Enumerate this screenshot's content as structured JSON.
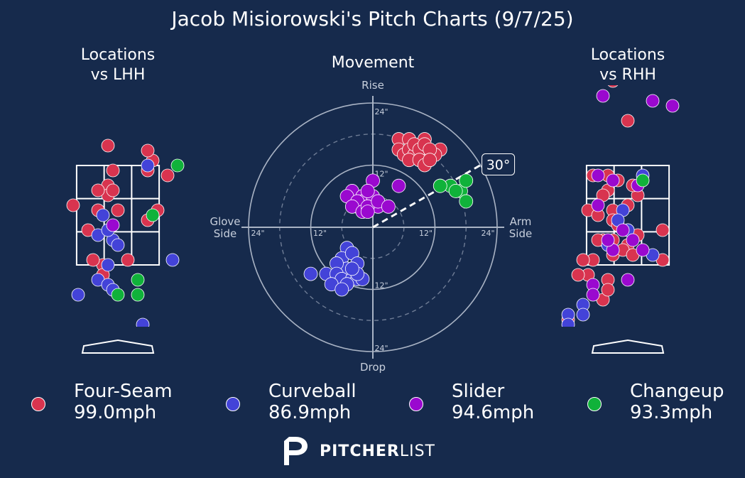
{
  "title": "Jacob Misiorowski's Pitch Charts (9/7/25)",
  "colors": {
    "background": "#162a4c",
    "four_seam": "#d8344f",
    "curveball": "#4343d8",
    "slider": "#9a09cf",
    "changeup": "#10b23a"
  },
  "panels": {
    "lhh_title": "Locations\nvs LHH",
    "movement_title": "Movement",
    "rhh_title": "Locations\nvs RHH"
  },
  "movement_labels": {
    "rise": "Rise",
    "drop": "Drop",
    "glove": "Glove\nSide",
    "arm": "Arm\nSide",
    "ticks": [
      "24\"",
      "12\"",
      "12\"",
      "24\""
    ],
    "arm_angle": "30°"
  },
  "legend": [
    {
      "name": "Four-Seam",
      "speed": "99.0mph",
      "key": "four_seam"
    },
    {
      "name": "Curveball",
      "speed": "86.9mph",
      "key": "curveball"
    },
    {
      "name": "Slider",
      "speed": "94.6mph",
      "key": "slider"
    },
    {
      "name": "Changeup",
      "speed": "93.3mph",
      "key": "changeup"
    }
  ],
  "brand": {
    "bold": "PITCHER",
    "light": "LIST",
    "icon": "pitcherlist-logo-icon"
  },
  "chart_data": [
    {
      "type": "scatter",
      "title": "Locations vs LHH",
      "xlabel": "",
      "ylabel": "",
      "series": [
        {
          "name": "Four-Seam",
          "points": [
            [
              -0.2,
              3.9
            ],
            [
              -0.1,
              3.4
            ],
            [
              -0.2,
              3.1
            ],
            [
              -0.2,
              2.9
            ],
            [
              -0.4,
              3.0
            ],
            [
              -0.1,
              3.0
            ],
            [
              0.0,
              2.6
            ],
            [
              -0.6,
              2.2
            ],
            [
              -0.4,
              2.6
            ],
            [
              -0.3,
              1.5
            ],
            [
              0.2,
              1.6
            ],
            [
              0.6,
              2.4
            ],
            [
              0.7,
              3.6
            ],
            [
              1.0,
              3.3
            ],
            [
              0.8,
              2.6
            ],
            [
              0.6,
              3.8
            ],
            [
              0.6,
              3.4
            ],
            [
              -0.9,
              2.7
            ],
            [
              -0.5,
              1.6
            ],
            [
              -0.3,
              1.3
            ]
          ]
        },
        {
          "name": "Curveball",
          "points": [
            [
              0.6,
              3.5
            ],
            [
              -0.3,
              2.5
            ],
            [
              -0.4,
              2.1
            ],
            [
              -0.1,
              2.0
            ],
            [
              0.0,
              1.9
            ],
            [
              -0.4,
              1.2
            ],
            [
              -0.2,
              1.1
            ],
            [
              -0.1,
              1.0
            ],
            [
              -0.8,
              0.9
            ],
            [
              -0.6,
              0.1
            ],
            [
              0.5,
              0.3
            ],
            [
              1.1,
              1.6
            ],
            [
              -0.2,
              1.5
            ],
            [
              -0.2,
              2.2
            ]
          ]
        },
        {
          "name": "Slider",
          "points": [
            [
              -0.1,
              2.3
            ]
          ]
        },
        {
          "name": "Changeup",
          "points": [
            [
              0.7,
              2.5
            ],
            [
              0.4,
              1.2
            ],
            [
              0.4,
              0.9
            ],
            [
              0.0,
              0.9
            ],
            [
              1.2,
              3.5
            ]
          ]
        }
      ]
    },
    {
      "type": "scatter",
      "title": "Movement",
      "xlabel": "Arm Side",
      "ylabel": "Rise",
      "xlim": [
        -24,
        24
      ],
      "ylim": [
        -24,
        24
      ],
      "series": [
        {
          "name": "Four-Seam",
          "points": [
            [
              5,
              17
            ],
            [
              7,
              17
            ],
            [
              10,
              17
            ],
            [
              13,
              15
            ],
            [
              5,
              15
            ],
            [
              6,
              14
            ],
            [
              7,
              15
            ],
            [
              8,
              14
            ],
            [
              9,
              13
            ],
            [
              10,
              14
            ],
            [
              11,
              13
            ],
            [
              12,
              14
            ],
            [
              8,
              16
            ],
            [
              9,
              15
            ],
            [
              10,
              16
            ],
            [
              11,
              15
            ],
            [
              7,
              13
            ],
            [
              9,
              13
            ],
            [
              10,
              12
            ],
            [
              11,
              13
            ]
          ]
        },
        {
          "name": "Curveball",
          "points": [
            [
              -5,
              -4
            ],
            [
              -6,
              -6
            ],
            [
              -4,
              -5
            ],
            [
              -3,
              -7
            ],
            [
              -5,
              -8
            ],
            [
              -7,
              -7
            ],
            [
              -12,
              -9
            ],
            [
              -9,
              -9
            ],
            [
              -7,
              -9
            ],
            [
              -6,
              -10
            ],
            [
              -4,
              -10
            ],
            [
              -3,
              -10
            ],
            [
              -2,
              -10
            ],
            [
              -5,
              -11
            ],
            [
              -3,
              -9
            ],
            [
              -4,
              -8
            ],
            [
              -8,
              -11
            ],
            [
              -6,
              -12
            ]
          ]
        },
        {
          "name": "Slider",
          "points": [
            [
              0,
              9
            ],
            [
              5,
              8
            ],
            [
              -4,
              7
            ],
            [
              -2,
              6
            ],
            [
              -5,
              6
            ],
            [
              -3,
              4
            ],
            [
              -2,
              5
            ],
            [
              0,
              6
            ],
            [
              1,
              4
            ],
            [
              -1,
              4
            ],
            [
              -3,
              5
            ],
            [
              -4,
              4
            ],
            [
              -2,
              3
            ],
            [
              -1,
              4
            ],
            [
              -1,
              3
            ],
            [
              1,
              5
            ],
            [
              3,
              4
            ],
            [
              -1,
              7
            ]
          ]
        },
        {
          "name": "Changeup",
          "points": [
            [
              13,
              8
            ],
            [
              15,
              8
            ],
            [
              17,
              7
            ],
            [
              18,
              9
            ],
            [
              16,
              7
            ],
            [
              18,
              5
            ],
            [
              13,
              8
            ]
          ]
        }
      ]
    },
    {
      "type": "scatter",
      "title": "Locations vs RHH",
      "xlabel": "",
      "ylabel": "",
      "series": [
        {
          "name": "Four-Seam",
          "points": [
            [
              -0.3,
              5.2
            ],
            [
              1.1,
              5.6
            ],
            [
              0.0,
              4.4
            ],
            [
              -0.7,
              3.3
            ],
            [
              -0.4,
              3.3
            ],
            [
              -0.2,
              3.2
            ],
            [
              -0.4,
              3.0
            ],
            [
              -0.5,
              2.9
            ],
            [
              0.0,
              2.7
            ],
            [
              0.2,
              2.9
            ],
            [
              0.1,
              3.1
            ],
            [
              -0.3,
              2.6
            ],
            [
              -0.8,
              2.6
            ],
            [
              -0.6,
              2.5
            ],
            [
              -0.3,
              2.4
            ],
            [
              -0.2,
              2.3
            ],
            [
              0.0,
              2.2
            ],
            [
              -0.3,
              2.0
            ],
            [
              -0.5,
              2.0
            ],
            [
              0.0,
              1.9
            ],
            [
              0.2,
              2.1
            ],
            [
              0.7,
              2.2
            ],
            [
              -0.6,
              2.0
            ],
            [
              -0.7,
              1.6
            ],
            [
              -0.3,
              1.7
            ],
            [
              -0.1,
              1.8
            ],
            [
              0.1,
              1.7
            ],
            [
              -0.9,
              1.6
            ],
            [
              -0.8,
              1.3
            ],
            [
              -0.4,
              1.2
            ],
            [
              -1.0,
              1.3
            ],
            [
              -0.5,
              0.8
            ],
            [
              -0.4,
              1.0
            ],
            [
              0.7,
              1.6
            ],
            [
              -1.2,
              0.4
            ]
          ]
        },
        {
          "name": "Curveball",
          "points": [
            [
              0.3,
              3.3
            ],
            [
              -0.1,
              2.6
            ],
            [
              -0.2,
              2.4
            ],
            [
              -0.4,
              1.9
            ],
            [
              0.5,
              1.7
            ],
            [
              -0.9,
              0.7
            ],
            [
              -0.9,
              0.5
            ],
            [
              -1.2,
              0.5
            ],
            [
              -1.2,
              0.3
            ],
            [
              0.0,
              2.2
            ]
          ]
        },
        {
          "name": "Slider",
          "points": [
            [
              -0.5,
              4.9
            ],
            [
              0.5,
              4.8
            ],
            [
              0.9,
              4.7
            ],
            [
              -0.6,
              3.3
            ],
            [
              -0.3,
              3.2
            ],
            [
              0.2,
              3.1
            ],
            [
              -0.6,
              2.7
            ],
            [
              -0.1,
              2.2
            ],
            [
              -0.3,
              1.8
            ],
            [
              0.3,
              1.8
            ],
            [
              0.1,
              2.0
            ],
            [
              -0.4,
              2.0
            ],
            [
              0.0,
              1.2
            ],
            [
              -0.7,
              1.1
            ],
            [
              -0.7,
              0.9
            ]
          ]
        },
        {
          "name": "Changeup",
          "points": [
            [
              0.3,
              3.2
            ]
          ]
        }
      ]
    }
  ]
}
